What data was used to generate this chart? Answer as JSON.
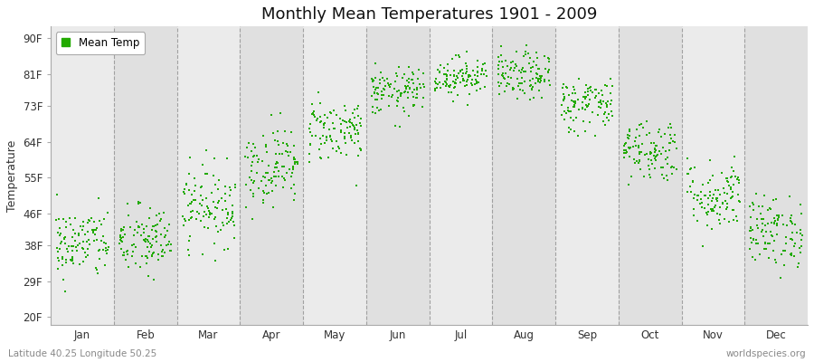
{
  "title": "Monthly Mean Temperatures 1901 - 2009",
  "ylabel": "Temperature",
  "xlabel_bottom_left": "Latitude 40.25 Longitude 50.25",
  "xlabel_bottom_right": "worldspecies.org",
  "months": [
    "Jan",
    "Feb",
    "Mar",
    "Apr",
    "May",
    "Jun",
    "Jul",
    "Aug",
    "Sep",
    "Oct",
    "Nov",
    "Dec"
  ],
  "month_means_F": [
    38.5,
    39.0,
    48.0,
    58.0,
    67.0,
    76.5,
    80.5,
    80.5,
    73.5,
    62.0,
    50.5,
    41.5
  ],
  "month_stds_F": [
    4.5,
    4.5,
    5.0,
    5.0,
    4.0,
    3.0,
    2.5,
    3.0,
    3.5,
    4.0,
    4.5,
    4.5
  ],
  "n_years": 109,
  "yticks": [
    20,
    29,
    38,
    46,
    55,
    64,
    73,
    81,
    90
  ],
  "ytick_labels": [
    "20F",
    "29F",
    "38F",
    "46F",
    "55F",
    "64F",
    "73F",
    "81F",
    "90F"
  ],
  "ylim": [
    18,
    93
  ],
  "dot_color": "#22aa00",
  "dot_size": 2.5,
  "bg_color_light": "#ebebeb",
  "bg_color_dark": "#e0e0e0",
  "legend_label": "Mean Temp",
  "title_fontsize": 13,
  "axis_fontsize": 9,
  "tick_fontsize": 8.5,
  "seed": 42
}
